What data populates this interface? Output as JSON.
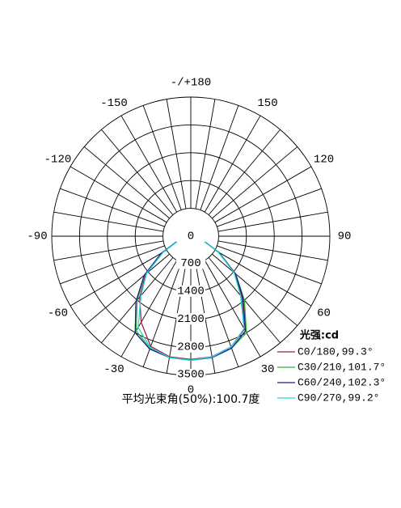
{
  "chart_data": {
    "type": "polar",
    "annotation": "平均光束角(50%):100.7度",
    "legend_title": "光强:cd",
    "rlim": [
      0,
      3500
    ],
    "rticks": [
      0,
      700,
      1400,
      2100,
      2800,
      3500
    ],
    "angle_ticks": [
      {
        "value": 180,
        "label": "-/+180"
      },
      150,
      120,
      90,
      60,
      30,
      0,
      -30,
      -60,
      -90,
      -120,
      -150
    ],
    "angle_grid": [
      -170,
      -160,
      -150,
      -140,
      -130,
      -120,
      -110,
      -100,
      -90,
      -80,
      -70,
      -60,
      -50,
      -40,
      -30,
      -20,
      -10,
      0,
      10,
      20,
      30,
      40,
      50,
      60,
      70,
      80,
      90,
      100,
      110,
      120,
      130,
      140,
      150,
      160,
      170,
      180
    ],
    "x": [
      -90,
      -80,
      -70,
      -60,
      -50,
      -40,
      -30,
      -20,
      -10,
      0,
      10,
      20,
      30,
      40,
      50,
      60,
      70,
      80,
      90
    ],
    "series": [
      {
        "name": "C0/180,99.3°",
        "color": "#a0203c",
        "values": [
          0,
          90,
          340,
          820,
          1480,
          2000,
          2500,
          2950,
          3080,
          3100,
          3080,
          2960,
          2700,
          2000,
          1450,
          800,
          330,
          90,
          0
        ]
      },
      {
        "name": "C30/210,101.7°",
        "color": "#2db82d",
        "values": [
          0,
          100,
          360,
          850,
          1520,
          2100,
          2750,
          3000,
          3100,
          3120,
          3100,
          3000,
          2800,
          2100,
          1480,
          820,
          340,
          100,
          0
        ]
      },
      {
        "name": "C60/240,102.3°",
        "color": "#1a1a9c",
        "values": [
          0,
          100,
          360,
          860,
          1530,
          2150,
          2800,
          3020,
          3100,
          3120,
          3100,
          3000,
          2750,
          2050,
          1470,
          820,
          340,
          100,
          0
        ]
      },
      {
        "name": "C90/270,99.2°",
        "color": "#22d8d8",
        "values": [
          0,
          90,
          330,
          800,
          1450,
          1950,
          2650,
          2980,
          3100,
          3120,
          3090,
          2960,
          2680,
          1950,
          1420,
          790,
          320,
          90,
          0
        ]
      }
    ]
  }
}
